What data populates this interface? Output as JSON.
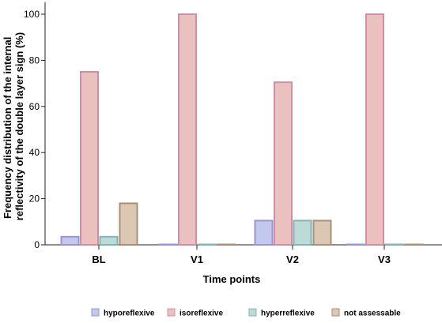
{
  "chart_data": {
    "type": "bar",
    "title": "",
    "xlabel": "Time points",
    "ylabel_lines": [
      "Frequency distribution of the internal",
      "reflectivity of the double layer sign (%)"
    ],
    "categories": [
      "BL",
      "V1",
      "V2",
      "V3"
    ],
    "ylim": [
      0,
      100
    ],
    "yticks": [
      0,
      20,
      40,
      60,
      80,
      100
    ],
    "grid": false,
    "legend_position": "bottom",
    "series": [
      {
        "name": "hyporeflexive",
        "values": [
          3.5,
          0,
          10.5,
          0
        ],
        "fill": "#c3c9ec",
        "stroke": "#9b93d4"
      },
      {
        "name": "isoreflexive",
        "values": [
          75,
          100,
          70.5,
          100
        ],
        "fill": "#ebc1c0",
        "stroke": "#cf8ea6"
      },
      {
        "name": "hyperreflexive",
        "values": [
          3.5,
          0,
          10.5,
          0
        ],
        "fill": "#bcdad8",
        "stroke": "#86b3b0"
      },
      {
        "name": "not assessable",
        "values": [
          18,
          0,
          10.5,
          0
        ],
        "fill": "#dbc7b3",
        "stroke": "#a89078"
      }
    ]
  }
}
